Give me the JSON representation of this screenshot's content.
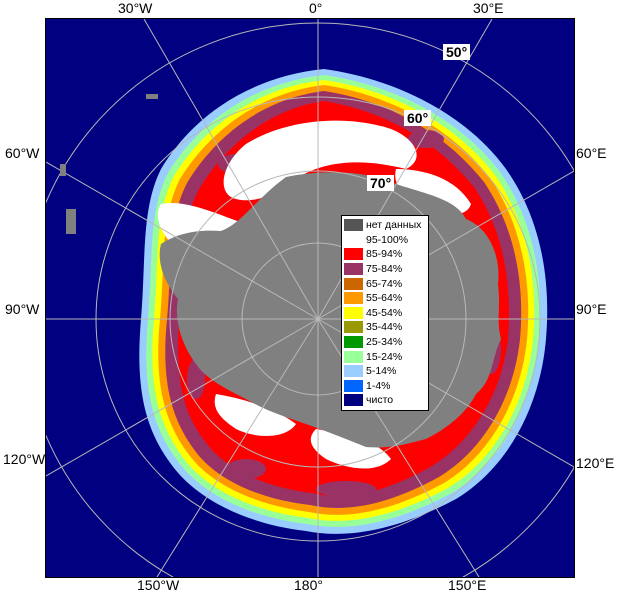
{
  "map": {
    "colors": {
      "ocean": "#000080",
      "land": "#808080",
      "no_data": "#505050",
      "graticule": "#b8b8b8"
    },
    "longitude_labels": {
      "top": [
        "30°W",
        "0°",
        "30°E"
      ],
      "bottom": [
        "150°W",
        "180°",
        "150°E"
      ],
      "left": [
        "60°W",
        "90°W",
        "120°W"
      ],
      "right": [
        "60°E",
        "90°E",
        "120°E"
      ]
    },
    "latitude_labels": [
      "50°",
      "60°",
      "70°"
    ]
  },
  "legend": {
    "items": [
      {
        "label": "нет данных",
        "color": "#555555"
      },
      {
        "label": "95-100%",
        "color": "#ffffff"
      },
      {
        "label": "85-94%",
        "color": "#ff0000"
      },
      {
        "label": "75-84%",
        "color": "#993366"
      },
      {
        "label": "65-74%",
        "color": "#cc6600"
      },
      {
        "label": "55-64%",
        "color": "#ff9900"
      },
      {
        "label": "45-54%",
        "color": "#ffff00"
      },
      {
        "label": "35-44%",
        "color": "#999900"
      },
      {
        "label": "25-34%",
        "color": "#009900"
      },
      {
        "label": "15-24%",
        "color": "#99ff99"
      },
      {
        "label": "5-14%",
        "color": "#99ccff"
      },
      {
        "label": "1-4%",
        "color": "#0066ff"
      },
      {
        "label": "чисто",
        "color": "#000080"
      }
    ]
  }
}
